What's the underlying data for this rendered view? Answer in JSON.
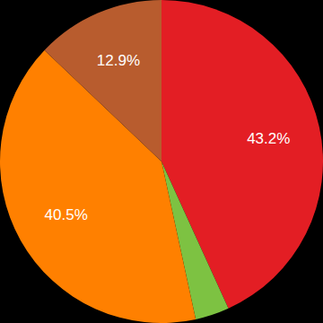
{
  "chart_data": {
    "type": "pie",
    "values": [
      43.2,
      3.4,
      40.5,
      12.9
    ],
    "value_labels": [
      "43.2%",
      null,
      "40.5%",
      "12.9%"
    ],
    "colors": [
      "#e31e24",
      "#7dc242",
      "#ff8000",
      "#b85c2e"
    ],
    "data_labels": true
  }
}
